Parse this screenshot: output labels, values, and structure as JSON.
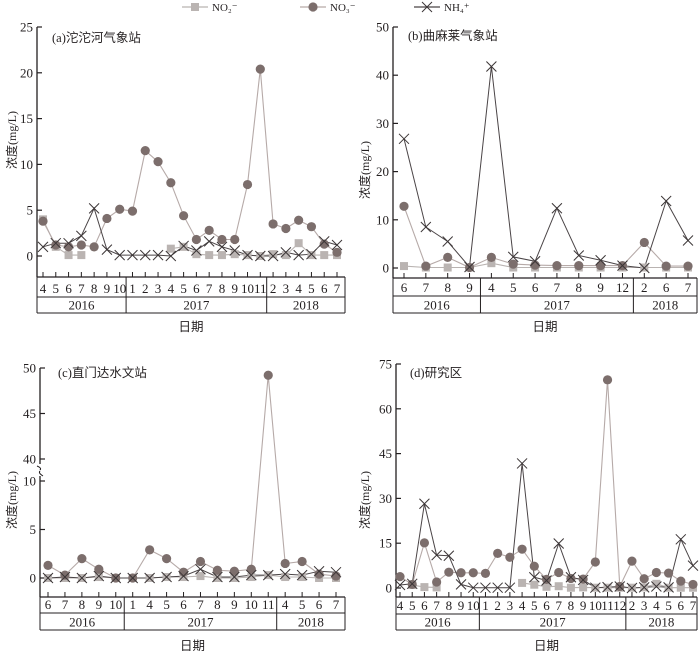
{
  "legend": {
    "items": [
      {
        "label": "NO₂⁻",
        "marker": "square",
        "color": "#b9b3b1",
        "line": "#b9b3b1"
      },
      {
        "label": "NO₃⁻",
        "marker": "circle",
        "color": "#7c6e6c",
        "line": "#b6aaa8"
      },
      {
        "label": "NH₄⁺",
        "marker": "cross",
        "color": "#3b3536",
        "line": "#4a4446"
      }
    ]
  },
  "chart_data": [
    {
      "type": "line",
      "title": "(a)沱沱河气象站",
      "xlabel": "日期",
      "ylabel": "浓度(mg/L)",
      "ylim": [
        0,
        25
      ],
      "yticks": [
        0,
        5,
        10,
        15,
        20,
        25
      ],
      "months": [
        "4",
        "5",
        "6",
        "7",
        "8",
        "9",
        "10",
        "1",
        "2",
        "3",
        "4",
        "5",
        "6",
        "7",
        "8",
        "9",
        "10",
        "11",
        "2",
        "3",
        "4",
        "5",
        "6",
        "7"
      ],
      "years": [
        {
          "label": "2016",
          "count": 7
        },
        {
          "label": "2017",
          "count": 11
        },
        {
          "label": "2018",
          "count": 6
        }
      ],
      "series": [
        {
          "name": "NO₂⁻",
          "values": [
            4.0,
            1.0,
            0.1,
            0.1,
            null,
            null,
            null,
            null,
            null,
            null,
            0.8,
            1.0,
            0.2,
            0.1,
            0.1,
            0.2,
            0.1,
            0.0,
            0.2,
            0.1,
            1.4,
            0.1,
            0.1,
            0.1
          ]
        },
        {
          "name": "NO₃⁻",
          "values": [
            3.8,
            1.2,
            1.0,
            1.2,
            1.0,
            4.1,
            5.1,
            4.9,
            11.5,
            10.3,
            8.0,
            4.4,
            1.8,
            2.8,
            1.8,
            1.8,
            7.8,
            20.4,
            3.5,
            3.0,
            3.9,
            3.2,
            1.3,
            0.4
          ]
        },
        {
          "name": "NH₄⁺",
          "values": [
            1.0,
            1.4,
            1.4,
            2.2,
            5.2,
            0.7,
            0.1,
            0.1,
            0.1,
            0.1,
            0.0,
            1.1,
            0.6,
            1.6,
            1.0,
            0.6,
            0.1,
            0.0,
            0.0,
            0.4,
            0.1,
            0.2,
            1.6,
            1.2
          ]
        }
      ]
    },
    {
      "type": "line",
      "title": "(b)曲麻莱气象站",
      "xlabel": "日期",
      "ylabel": "浓度(mg/L)",
      "ylim": [
        0,
        50
      ],
      "yticks": [
        0,
        10,
        20,
        30,
        40,
        50
      ],
      "months": [
        "6",
        "7",
        "8",
        "9",
        "4",
        "5",
        "6",
        "7",
        "8",
        "9",
        "12",
        "2",
        "6",
        "7"
      ],
      "years": [
        {
          "label": "2016",
          "count": 4
        },
        {
          "label": "2017",
          "count": 7
        },
        {
          "label": "2018",
          "count": 3
        }
      ],
      "series": [
        {
          "name": "NO₂⁻",
          "values": [
            0.4,
            0.1,
            0.1,
            0.1,
            1.0,
            0.1,
            0.1,
            0.1,
            0.1,
            0.1,
            0.1,
            0.1,
            0.1,
            0.1
          ]
        },
        {
          "name": "NO₃⁻",
          "values": [
            12.8,
            0.4,
            2.2,
            0.1,
            2.2,
            0.8,
            0.6,
            0.5,
            0.5,
            0.5,
            0.5,
            5.3,
            0.4,
            0.4
          ]
        },
        {
          "name": "NH₄⁺",
          "values": [
            26.8,
            8.5,
            5.5,
            0.2,
            41.8,
            2.3,
            1.4,
            12.4,
            2.6,
            1.6,
            0.5,
            0.0,
            13.9,
            5.7
          ]
        }
      ]
    },
    {
      "type": "line",
      "title": "(c)直门达水文站",
      "xlabel": "日期",
      "ylabel": "浓度(mg/L)",
      "ylim": [
        0,
        50
      ],
      "axis_break": [
        10,
        40
      ],
      "yticks": [
        0,
        5,
        10,
        40,
        45,
        50
      ],
      "months": [
        "6",
        "7",
        "8",
        "9",
        "10",
        "1",
        "4",
        "5",
        "6",
        "7",
        "8",
        "9",
        "10",
        "11",
        "4",
        "5",
        "6",
        "7"
      ],
      "years": [
        {
          "label": "2016",
          "count": 5
        },
        {
          "label": "2017",
          "count": 9
        },
        {
          "label": "2018",
          "count": 4
        }
      ],
      "series": [
        {
          "name": "NO₂⁻",
          "values": [
            0.0,
            0.0,
            0.0,
            0.1,
            0.0,
            0.0,
            0.0,
            0.1,
            0.1,
            0.2,
            0.0,
            0.0,
            0.1,
            0.3,
            0.1,
            0.1,
            0.0,
            0.0
          ]
        },
        {
          "name": "NO₃⁻",
          "values": [
            1.3,
            0.3,
            2.0,
            0.9,
            0.0,
            0.0,
            2.9,
            2.0,
            0.6,
            1.7,
            0.8,
            0.7,
            0.9,
            49.2,
            1.5,
            1.7,
            0.4,
            0.2
          ]
        },
        {
          "name": "NH₄⁺",
          "values": [
            0.0,
            0.1,
            0.0,
            0.2,
            0.0,
            0.0,
            0.0,
            0.1,
            0.2,
            0.9,
            0.1,
            0.1,
            0.3,
            0.3,
            0.4,
            0.3,
            0.7,
            0.6
          ]
        }
      ]
    },
    {
      "type": "line",
      "title": "(d)研究区",
      "xlabel": "日期",
      "ylabel": "浓度(mg/L)",
      "ylim": [
        0,
        75
      ],
      "yticks": [
        0,
        15,
        30,
        45,
        60,
        75
      ],
      "months": [
        "4",
        "5",
        "6",
        "7",
        "8",
        "9",
        "10",
        "1",
        "2",
        "3",
        "4",
        "5",
        "6",
        "7",
        "8",
        "9",
        "10",
        "11",
        "12",
        "2",
        "3",
        "4",
        "5",
        "6",
        "7"
      ],
      "years": [
        {
          "label": "2016",
          "count": 7
        },
        {
          "label": "2017",
          "count": 12
        },
        {
          "label": "2018",
          "count": 6
        }
      ],
      "series": [
        {
          "name": "NO₂⁻",
          "values": [
            null,
            1.0,
            0.3,
            0.2,
            null,
            null,
            null,
            null,
            null,
            null,
            1.7,
            1.1,
            0.4,
            0.6,
            0.1,
            0.2,
            0.1,
            0.1,
            0.1,
            0.1,
            0.2,
            1.4,
            0.1,
            0.1,
            0.1
          ]
        },
        {
          "name": "NO₃⁻",
          "values": [
            3.8,
            1.2,
            15.1,
            2.0,
            5.3,
            5.1,
            5.1,
            4.9,
            11.6,
            10.3,
            13.0,
            7.3,
            2.9,
            5.2,
            3.2,
            3.0,
            8.7,
            69.7,
            0.5,
            9.0,
            3.1,
            5.2,
            5.0,
            2.3,
            1.2
          ]
        },
        {
          "name": "NH₄⁺",
          "values": [
            1.0,
            1.4,
            28.2,
            11.0,
            10.8,
            1.2,
            0.1,
            0.1,
            0.1,
            0.1,
            41.7,
            3.6,
            2.5,
            14.9,
            3.6,
            2.7,
            0.1,
            0.3,
            0.5,
            0.0,
            0.2,
            0.5,
            0.2,
            16.3,
            7.5
          ]
        }
      ]
    }
  ]
}
